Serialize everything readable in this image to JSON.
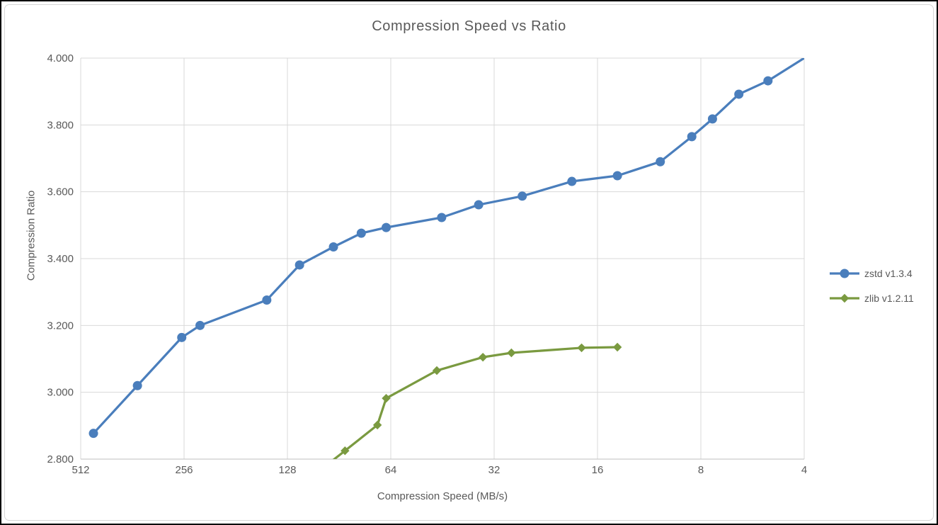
{
  "window": {
    "frame_color": "#000000",
    "canvas_color": "#ffffff",
    "inner_border_color": "#d7d7d7"
  },
  "chart_data": {
    "type": "line",
    "title": "Compression Speed vs Ratio",
    "xlabel": "Compression Speed (MB/s)",
    "ylabel": "Compression Ratio",
    "x_scale": "log2",
    "x_reversed": true,
    "x_domain": [
      512,
      4
    ],
    "x_ticks": [
      512,
      256,
      128,
      64,
      32,
      16,
      8,
      4
    ],
    "y_domain": [
      2.8,
      4.0
    ],
    "y_ticks": [
      2.8,
      3.0,
      3.2,
      3.4,
      3.6,
      3.8,
      4.0
    ],
    "y_tick_decimals": 3,
    "grid": true,
    "gridline_color": "#d9d9d9",
    "axis_line_color": "#bfbfbf",
    "text_color": "#595959",
    "legend_position": "right",
    "series": [
      {
        "name": "zstd v1.3.4",
        "color": "#4a7ebc",
        "marker": "circle",
        "points": [
          [
            470,
            2.877
          ],
          [
            350,
            3.02
          ],
          [
            260,
            3.164
          ],
          [
            230,
            3.2
          ],
          [
            147,
            3.276
          ],
          [
            118,
            3.381
          ],
          [
            94,
            3.435
          ],
          [
            78,
            3.476
          ],
          [
            66,
            3.493
          ],
          [
            45.5,
            3.523
          ],
          [
            35.5,
            3.561
          ],
          [
            26.5,
            3.587
          ],
          [
            19,
            3.631
          ],
          [
            14,
            3.648
          ],
          [
            10.5,
            3.69
          ],
          [
            8.5,
            3.765
          ],
          [
            7.4,
            3.818
          ],
          [
            6.2,
            3.892
          ],
          [
            5.1,
            3.932
          ],
          [
            4.0,
            4.0
          ]
        ]
      },
      {
        "name": "zlib v1.2.11",
        "color": "#7a9a40",
        "marker": "diamond",
        "points": [
          [
            110,
            2.743
          ],
          [
            87,
            2.825
          ],
          [
            70,
            2.902
          ],
          [
            66,
            2.982
          ],
          [
            47,
            3.065
          ],
          [
            34.5,
            3.105
          ],
          [
            28.5,
            3.118
          ],
          [
            17.8,
            3.133
          ],
          [
            14,
            3.135
          ]
        ]
      }
    ]
  }
}
